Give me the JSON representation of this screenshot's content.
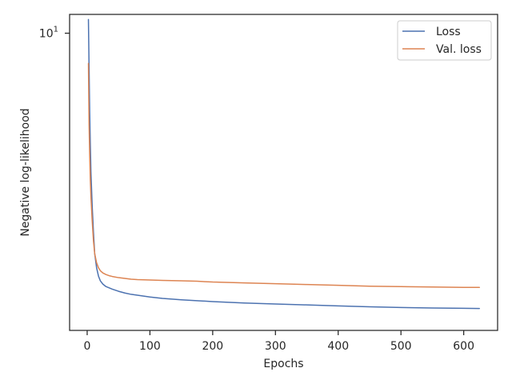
{
  "chart_data": {
    "type": "line",
    "title": "",
    "xlabel": "Epochs",
    "ylabel": "Negative log-likelihood",
    "xlim": [
      -28,
      654
    ],
    "ylim": [
      1.26,
      11.4
    ],
    "yscale": "log",
    "grid": false,
    "legend_position": "top-right",
    "x_ticks": [
      0,
      100,
      200,
      300,
      400,
      500,
      600
    ],
    "y_ticks": [
      {
        "value": 10,
        "label": "10^1"
      }
    ],
    "series": [
      {
        "name": "Loss",
        "color": "#4c72b0",
        "x": [
          2,
          3,
          4,
          5,
          6,
          8,
          10,
          12,
          15,
          18,
          21,
          25,
          30,
          35,
          40,
          50,
          60,
          70,
          80,
          100,
          120,
          150,
          175,
          200,
          250,
          300,
          350,
          400,
          450,
          500,
          550,
          600,
          625
        ],
        "y": [
          11.0,
          7.9,
          5.8,
          4.6,
          3.8,
          3.0,
          2.5,
          2.15,
          1.95,
          1.84,
          1.78,
          1.74,
          1.71,
          1.695,
          1.68,
          1.655,
          1.635,
          1.62,
          1.61,
          1.59,
          1.575,
          1.56,
          1.55,
          1.54,
          1.525,
          1.515,
          1.505,
          1.495,
          1.485,
          1.478,
          1.473,
          1.47,
          1.468
        ]
      },
      {
        "name": "Val. loss",
        "color": "#dd8452",
        "x": [
          2,
          3,
          4,
          5,
          6,
          8,
          10,
          12,
          15,
          18,
          21,
          25,
          30,
          35,
          40,
          50,
          60,
          70,
          80,
          100,
          120,
          150,
          175,
          200,
          250,
          300,
          350,
          400,
          450,
          500,
          550,
          600,
          625
        ],
        "y": [
          8.1,
          5.3,
          4.3,
          3.6,
          3.2,
          2.7,
          2.35,
          2.15,
          2.02,
          1.95,
          1.91,
          1.88,
          1.86,
          1.845,
          1.835,
          1.82,
          1.81,
          1.8,
          1.795,
          1.79,
          1.785,
          1.78,
          1.775,
          1.765,
          1.755,
          1.745,
          1.735,
          1.725,
          1.715,
          1.71,
          1.705,
          1.7,
          1.7
        ]
      }
    ]
  }
}
